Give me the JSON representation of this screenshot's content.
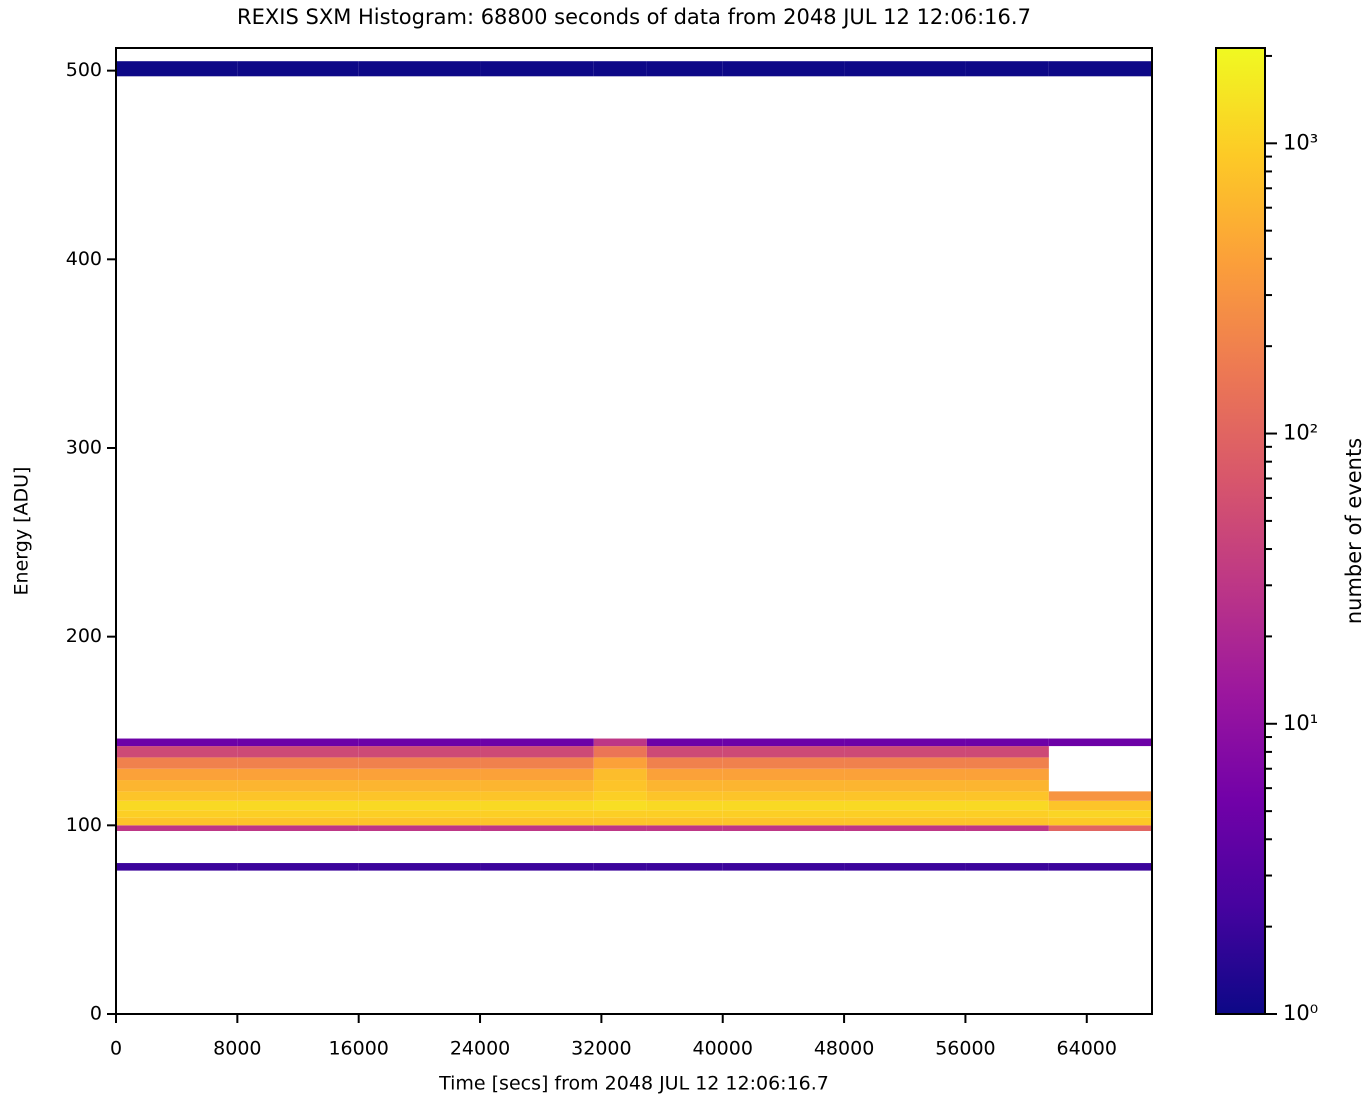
{
  "chart_data": {
    "type": "heatmap",
    "title": "REXIS SXM Histogram: 68800 seconds of data from 2048 JUL 12 12:06:16.7",
    "x_label": "Time [secs] from 2048 JUL 12 12:06:16.7",
    "y_label": "Energy [ADU]",
    "colorbar_label": "number of events",
    "colormap": "plasma",
    "color_log": true,
    "x": [
      0,
      8000,
      16000,
      24000,
      31500,
      35000,
      40000,
      48000,
      56000,
      61500,
      68300
    ],
    "y": [
      0,
      76,
      80,
      97,
      100,
      104,
      108,
      113,
      118,
      124,
      130,
      136,
      142,
      146,
      497,
      505,
      512
    ],
    "values": [
      [
        0,
        0,
        0,
        0,
        0,
        0,
        0,
        0,
        0,
        0
      ],
      [
        2,
        2,
        2,
        2,
        2,
        2,
        2,
        2,
        2,
        2
      ],
      [
        0,
        0,
        0,
        0,
        0,
        0,
        0,
        0,
        0,
        0
      ],
      [
        30,
        30,
        30,
        30,
        30,
        30,
        30,
        30,
        30,
        100
      ],
      [
        800,
        800,
        800,
        800,
        800,
        800,
        800,
        800,
        800,
        900
      ],
      [
        1000,
        1000,
        1000,
        1000,
        1000,
        1000,
        1000,
        1000,
        1000,
        1100
      ],
      [
        1200,
        1200,
        1200,
        1200,
        1300,
        1200,
        1200,
        1200,
        1200,
        800
      ],
      [
        800,
        800,
        800,
        800,
        1000,
        800,
        800,
        800,
        800,
        300
      ],
      [
        600,
        600,
        600,
        600,
        800,
        600,
        600,
        600,
        600,
        0
      ],
      [
        400,
        400,
        400,
        400,
        700,
        400,
        400,
        400,
        400,
        0
      ],
      [
        200,
        200,
        200,
        200,
        400,
        200,
        200,
        200,
        200,
        0
      ],
      [
        50,
        50,
        50,
        50,
        150,
        50,
        50,
        50,
        50,
        0
      ],
      [
        5,
        5,
        5,
        5,
        30,
        5,
        5,
        5,
        5,
        5
      ],
      [
        0,
        0,
        0,
        0,
        0,
        0,
        0,
        0,
        0,
        0
      ],
      [
        1,
        1,
        1,
        1,
        1,
        1,
        1,
        1,
        1,
        1
      ],
      [
        0,
        0,
        0,
        0,
        0,
        0,
        0,
        0,
        0,
        0
      ]
    ],
    "xlim": [
      0,
      68300
    ],
    "ylim": [
      0,
      512
    ],
    "clim": [
      1,
      2130
    ],
    "xticks": [
      0,
      8000,
      16000,
      24000,
      32000,
      40000,
      48000,
      56000,
      64000
    ],
    "yticks": [
      0,
      100,
      200,
      300,
      400,
      500
    ],
    "cticks": [
      {
        "value": 1,
        "label": "10⁰"
      },
      {
        "value": 10,
        "label": "10¹"
      },
      {
        "value": 100,
        "label": "10²"
      },
      {
        "value": 1000,
        "label": "10³"
      }
    ]
  }
}
